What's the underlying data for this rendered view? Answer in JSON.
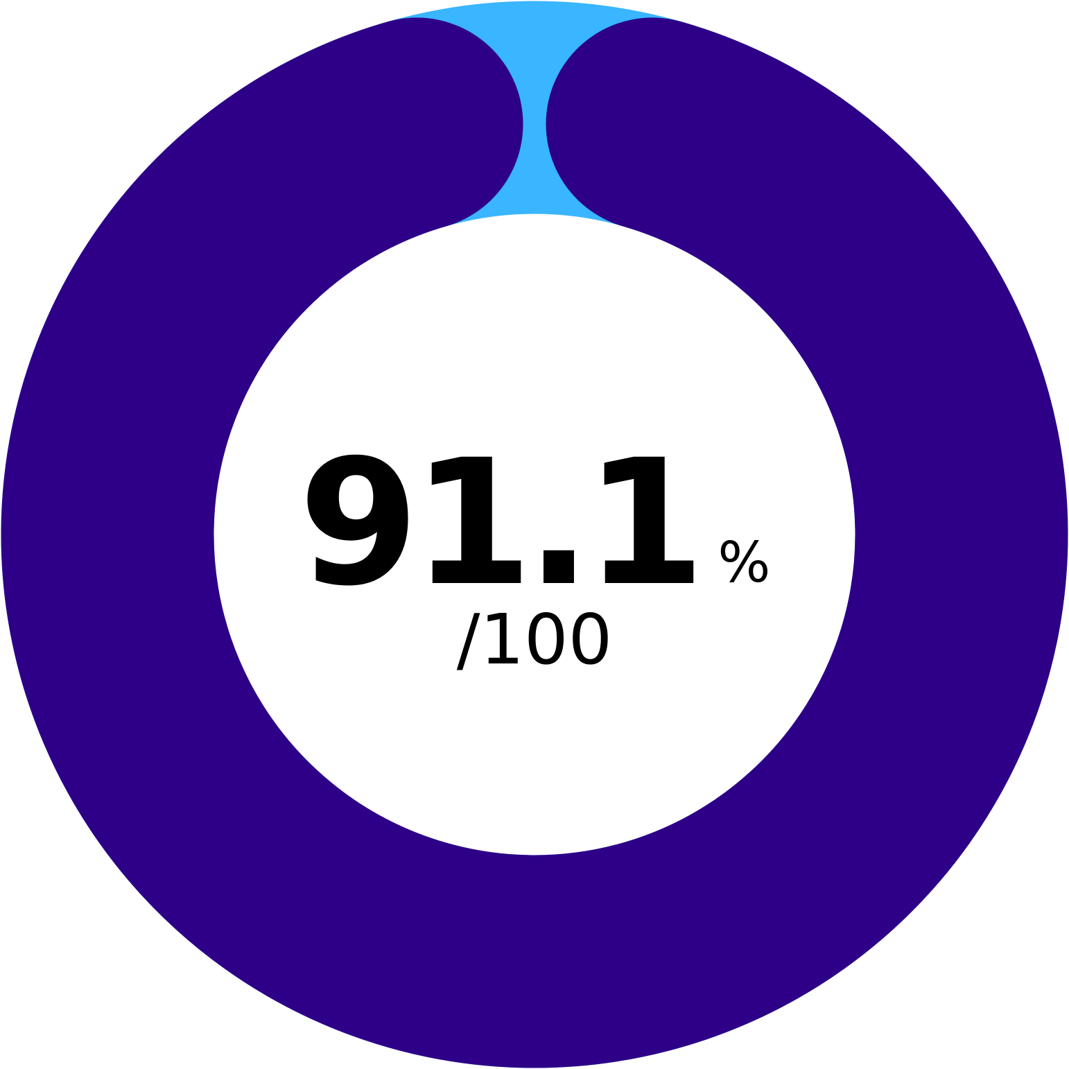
{
  "gauge": {
    "value": 91.1,
    "max": 100,
    "value_label": "91.1",
    "unit_label": "%",
    "max_label": "/100",
    "colors": {
      "progress": "#2e0087",
      "track": "#3ab5ff",
      "background": "#ffffff",
      "text": "#000000"
    }
  }
}
